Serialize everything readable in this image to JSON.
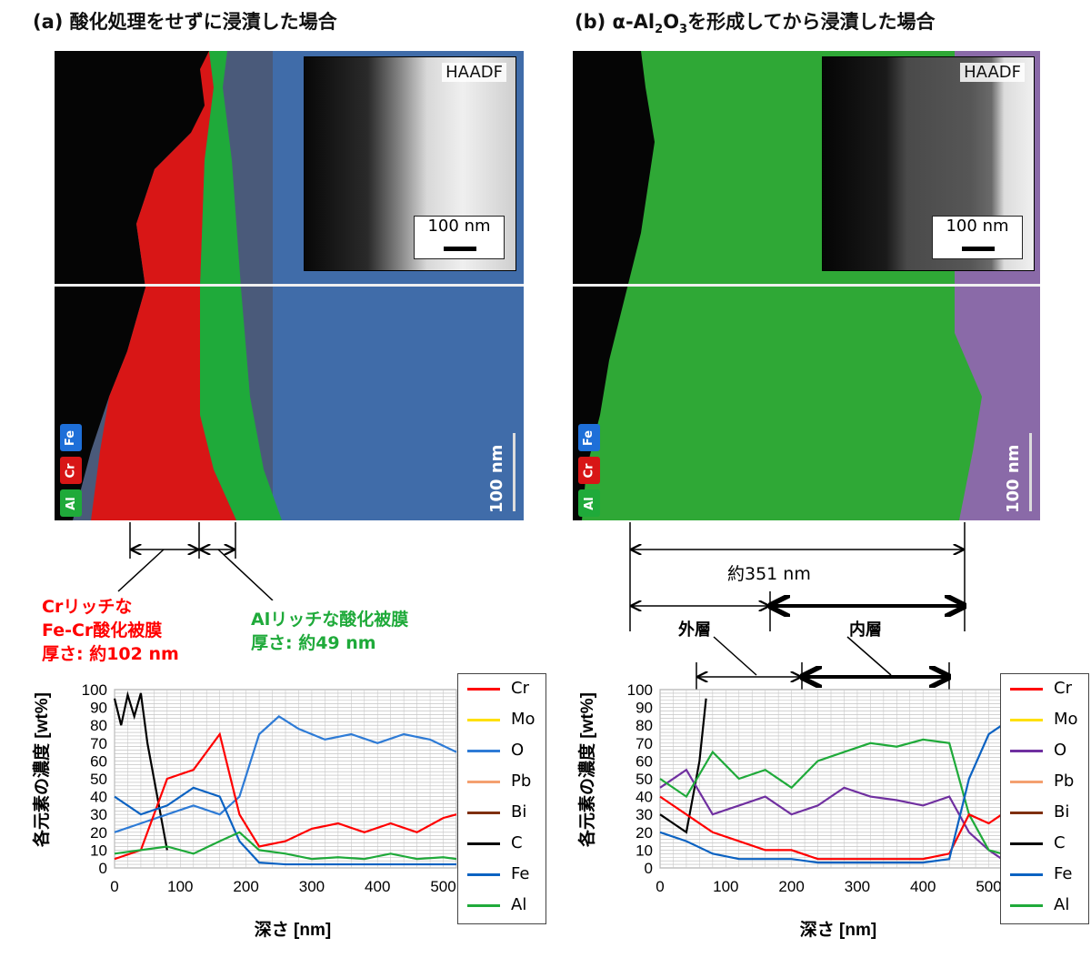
{
  "panel_a": {
    "title": "(a) 酸化処理をせずに浸漬した場合",
    "inset_label": "HAADF",
    "inset_scale": "100 nm",
    "map_scale": "100 nm",
    "badges": [
      "Fe",
      "Cr",
      "Al"
    ],
    "annotation_cr": [
      "Crリッチな",
      "Fe-Cr酸化被膜",
      "厚さ: 約102 nm"
    ],
    "annotation_al": [
      "Alリッチな酸化被膜",
      "厚さ: 約49 nm"
    ]
  },
  "panel_b": {
    "title_prefix": "(b) α-Al",
    "title_sub1": "2",
    "title_mid": "O",
    "title_sub2": "3",
    "title_suffix": "を形成してから浸漬した場合",
    "inset_label": "HAADF",
    "inset_scale": "100 nm",
    "map_scale": "100 nm",
    "badges": [
      "Fe",
      "Cr",
      "Al"
    ],
    "total_label": "約351 nm",
    "outer_label": "外層",
    "inner_label": "内層"
  },
  "colors": {
    "Cr": "#ff0000",
    "Mo": "#ffe000",
    "O_a": "#2e7bd6",
    "O_b": "#7030a0",
    "Pb": "#f4a070",
    "Bi": "#7f2f10",
    "C": "#000000",
    "Fe": "#0b62c2",
    "Al": "#1faa3a",
    "annotation_red": "#ff0000",
    "annotation_green": "#1faa3a"
  },
  "chart_data": [
    {
      "type": "line",
      "panel": "a",
      "xlabel": "深さ [nm]",
      "ylabel": "各元素の濃度 [wt%]",
      "xlim": [
        0,
        520
      ],
      "ylim": [
        0,
        100
      ],
      "x_ticks": [
        "0",
        "100",
        "200",
        "300",
        "400",
        "500"
      ],
      "y_ticks": [
        "0",
        "10",
        "20",
        "30",
        "40",
        "50",
        "60",
        "70",
        "80",
        "90",
        "100"
      ],
      "legend": [
        "Cr",
        "Mo",
        "O",
        "Pb",
        "Bi",
        "C",
        "Fe",
        "Al"
      ],
      "series": [
        {
          "name": "C",
          "x": [
            0,
            10,
            20,
            30,
            40,
            50,
            60,
            70,
            80
          ],
          "values": [
            95,
            80,
            97,
            85,
            98,
            70,
            50,
            30,
            10
          ]
        },
        {
          "name": "O",
          "x": [
            0,
            40,
            80,
            120,
            160,
            190,
            220,
            250,
            280,
            320,
            360,
            400,
            440,
            480,
            520
          ],
          "values": [
            20,
            25,
            30,
            35,
            30,
            40,
            75,
            85,
            78,
            72,
            75,
            70,
            75,
            72,
            65
          ]
        },
        {
          "name": "Cr",
          "x": [
            0,
            40,
            80,
            120,
            160,
            190,
            220,
            260,
            300,
            340,
            380,
            420,
            460,
            500,
            520
          ],
          "values": [
            5,
            10,
            50,
            55,
            75,
            30,
            12,
            15,
            22,
            25,
            20,
            25,
            20,
            28,
            30
          ]
        },
        {
          "name": "Fe",
          "x": [
            0,
            40,
            80,
            120,
            160,
            190,
            220,
            260,
            300,
            340,
            380,
            420,
            460,
            500,
            520
          ],
          "values": [
            40,
            30,
            35,
            45,
            40,
            15,
            3,
            2,
            2,
            2,
            2,
            2,
            2,
            2,
            2
          ]
        },
        {
          "name": "Al",
          "x": [
            0,
            40,
            80,
            120,
            160,
            190,
            220,
            260,
            300,
            340,
            380,
            420,
            460,
            500,
            520
          ],
          "values": [
            8,
            10,
            12,
            8,
            15,
            20,
            10,
            8,
            5,
            6,
            5,
            8,
            5,
            6,
            5
          ]
        }
      ]
    },
    {
      "type": "line",
      "panel": "b",
      "xlabel": "深さ [nm]",
      "ylabel": "各元素の濃度 [wt%]",
      "xlim": [
        0,
        520
      ],
      "ylim": [
        0,
        100
      ],
      "x_ticks": [
        "0",
        "100",
        "200",
        "300",
        "400",
        "500"
      ],
      "y_ticks": [
        "0",
        "10",
        "20",
        "30",
        "40",
        "50",
        "60",
        "70",
        "80",
        "90",
        "100"
      ],
      "legend": [
        "Cr",
        "Mo",
        "O",
        "Pb",
        "Bi",
        "C",
        "Fe",
        "Al"
      ],
      "series": [
        {
          "name": "C",
          "x": [
            0,
            20,
            40,
            60,
            70
          ],
          "values": [
            30,
            25,
            20,
            60,
            95
          ]
        },
        {
          "name": "O",
          "x": [
            0,
            40,
            80,
            120,
            160,
            200,
            240,
            280,
            320,
            360,
            400,
            440,
            470,
            500,
            520
          ],
          "values": [
            45,
            55,
            30,
            35,
            40,
            30,
            35,
            45,
            40,
            38,
            35,
            40,
            20,
            10,
            5
          ]
        },
        {
          "name": "Al",
          "x": [
            0,
            40,
            80,
            120,
            160,
            200,
            240,
            280,
            320,
            360,
            400,
            440,
            470,
            500,
            520
          ],
          "values": [
            50,
            40,
            65,
            50,
            55,
            45,
            60,
            65,
            70,
            68,
            72,
            70,
            30,
            10,
            8
          ]
        },
        {
          "name": "Cr",
          "x": [
            0,
            40,
            80,
            120,
            160,
            200,
            240,
            280,
            320,
            360,
            400,
            440,
            470,
            500,
            520
          ],
          "values": [
            40,
            30,
            20,
            15,
            10,
            10,
            5,
            5,
            5,
            5,
            5,
            8,
            30,
            25,
            30
          ]
        },
        {
          "name": "Fe",
          "x": [
            0,
            40,
            80,
            120,
            160,
            200,
            240,
            280,
            320,
            360,
            400,
            440,
            470,
            500,
            520
          ],
          "values": [
            20,
            15,
            8,
            5,
            5,
            5,
            3,
            3,
            3,
            3,
            3,
            5,
            50,
            75,
            80
          ]
        }
      ]
    }
  ]
}
